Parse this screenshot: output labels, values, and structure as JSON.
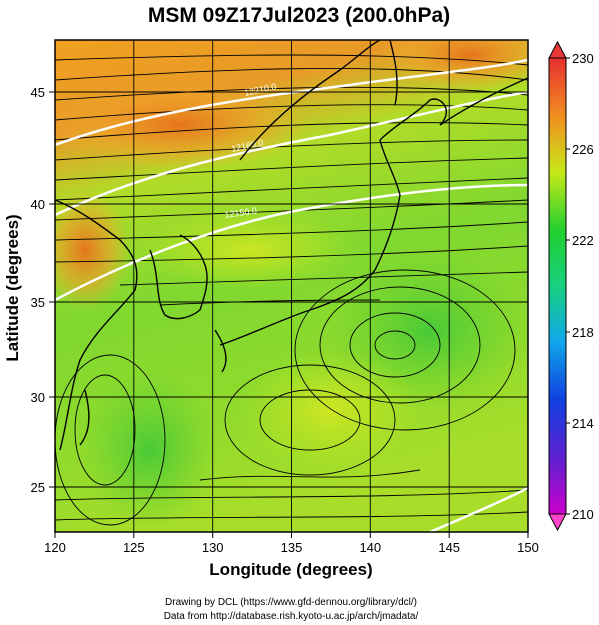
{
  "title": "MSM 09Z17Jul2023 (200.0hPa)",
  "xlabel": "Longitude (degrees)",
  "ylabel": "Latitude  (degrees)",
  "x_ticks": [
    "120",
    "125",
    "130",
    "135",
    "140",
    "145",
    "150"
  ],
  "y_ticks": [
    "25",
    "30",
    "35",
    "40",
    "45"
  ],
  "colorbar_ticks": [
    "230",
    "226",
    "222",
    "218",
    "214",
    "210"
  ],
  "contour_labels": [
    "12210.0",
    "12180.0",
    "12150.0"
  ],
  "credits": {
    "line1": "Drawing by DCL (https://www.gfd-dennou.org/library/dcl/)",
    "line2": "Data from http://database.rish.kyoto-u.ac.jp/arch/jmadata/"
  },
  "map": {
    "lon_range": [
      120,
      150
    ],
    "lat_range": [
      22.5,
      47.5
    ],
    "colorbar_range": [
      210,
      230
    ],
    "colorbar_unit_hint": "temperature (K)",
    "features": [
      "colour-shaded field",
      "streamlines",
      "white height contours",
      "coastlines",
      "5-degree grid"
    ],
    "colors": {
      "warm": "#e8741c",
      "mid": "#d8e81a",
      "cool": "#5cd030",
      "cold_end": "#ff33cc",
      "hot_end": "#e83830"
    }
  }
}
